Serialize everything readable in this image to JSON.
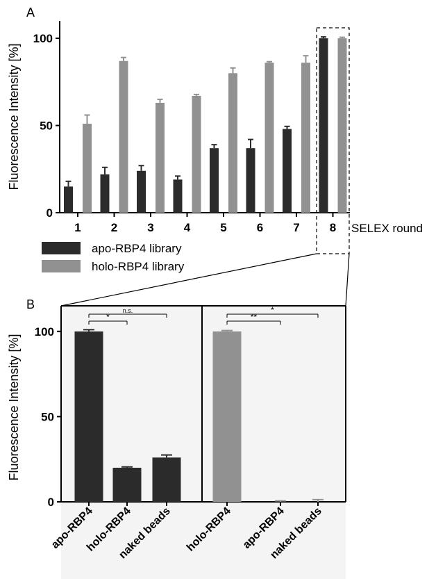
{
  "colors": {
    "apo": "#2b2b2b",
    "holo": "#919191",
    "panel_b_bg": "#f4f4f4",
    "axis": "#000000"
  },
  "chart_data": [
    {
      "panel": "A",
      "type": "bar",
      "ylabel": "Fluorescence Intensity [%]",
      "xlabel": "SELEX round",
      "ylim": [
        0,
        110
      ],
      "yticks": [
        "0",
        "50",
        "100"
      ],
      "categories": [
        "1",
        "2",
        "3",
        "4",
        "5",
        "6",
        "7",
        "8"
      ],
      "legend_position": "bottom-left",
      "series": [
        {
          "name": "apo-RBP4 library",
          "color_key": "apo",
          "values": [
            15,
            22,
            24,
            19,
            37,
            37,
            48,
            100
          ],
          "errors": [
            3,
            4,
            3,
            2,
            2,
            5,
            1.5,
            0.8
          ]
        },
        {
          "name": "holo-RBP4 library",
          "color_key": "holo",
          "values": [
            51,
            87,
            63,
            67,
            80,
            86,
            86,
            100
          ],
          "errors": [
            5,
            2,
            2,
            0.8,
            3,
            0.6,
            4,
            0.6
          ]
        }
      ]
    },
    {
      "panel": "B-left",
      "type": "bar",
      "ylabel": "Fluorescence Intensity [%]",
      "ylim": [
        0,
        115
      ],
      "yticks": [
        "0",
        "50",
        "100"
      ],
      "categories": [
        "apo-RBP4",
        "holo-RBP4",
        "naked beads"
      ],
      "values": [
        100,
        20,
        26
      ],
      "errors": [
        1,
        0.5,
        1.5
      ],
      "color_key": "apo",
      "significance": [
        {
          "from": 0,
          "to": 1,
          "label": "*"
        },
        {
          "from": 0,
          "to": 2,
          "label": "n.s."
        }
      ]
    },
    {
      "panel": "B-right",
      "type": "bar",
      "ylim": [
        0,
        115
      ],
      "categories": [
        "holo-RBP4",
        "apo-RBP4",
        "naked beads"
      ],
      "values": [
        100,
        0,
        0
      ],
      "errors": [
        0.5,
        0.6,
        1.3
      ],
      "color_key": "holo",
      "significance": [
        {
          "from": 0,
          "to": 1,
          "label": "**"
        },
        {
          "from": 0,
          "to": 2,
          "label": "*"
        }
      ]
    }
  ]
}
